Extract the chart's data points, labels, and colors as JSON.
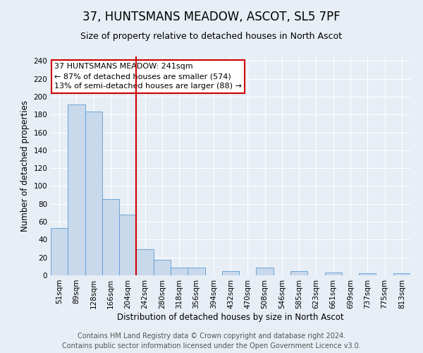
{
  "title": "37, HUNTSMANS MEADOW, ASCOT, SL5 7PF",
  "subtitle": "Size of property relative to detached houses in North Ascot",
  "xlabel": "Distribution of detached houses by size in North Ascot",
  "ylabel": "Number of detached properties",
  "bin_labels": [
    "51sqm",
    "89sqm",
    "128sqm",
    "166sqm",
    "204sqm",
    "242sqm",
    "280sqm",
    "318sqm",
    "356sqm",
    "394sqm",
    "432sqm",
    "470sqm",
    "508sqm",
    "546sqm",
    "585sqm",
    "623sqm",
    "661sqm",
    "699sqm",
    "737sqm",
    "775sqm",
    "813sqm"
  ],
  "bar_heights": [
    53,
    191,
    183,
    85,
    68,
    29,
    17,
    9,
    9,
    0,
    5,
    0,
    9,
    0,
    5,
    0,
    3,
    0,
    2,
    0,
    2
  ],
  "bar_color": "#c8d9eb",
  "bar_edge_color": "#5b9bd5",
  "vline_color": "#cc0000",
  "annotation_lines": [
    "37 HUNTSMANS MEADOW: 241sqm",
    "← 87% of detached houses are smaller (574)",
    "13% of semi-detached houses are larger (88) →"
  ],
  "annotation_box_edge": "#cc0000",
  "ylim": [
    0,
    245
  ],
  "yticks": [
    0,
    20,
    40,
    60,
    80,
    100,
    120,
    140,
    160,
    180,
    200,
    220,
    240
  ],
  "footer_line1": "Contains HM Land Registry data © Crown copyright and database right 2024.",
  "footer_line2": "Contains public sector information licensed under the Open Government Licence v3.0.",
  "background_color": "#e8eef5",
  "plot_background_color": "#e8eef5",
  "grid_color": "#ffffff",
  "title_fontsize": 12,
  "subtitle_fontsize": 9,
  "axis_label_fontsize": 8.5,
  "tick_fontsize": 7.5,
  "annotation_fontsize": 8,
  "footer_fontsize": 7
}
